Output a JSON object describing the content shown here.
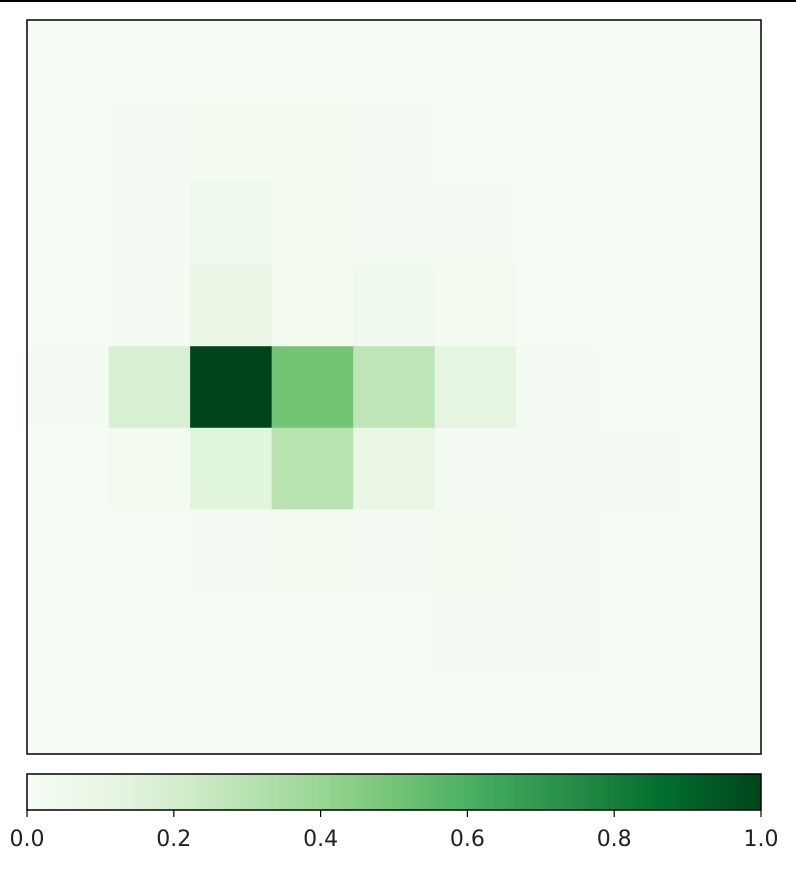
{
  "chart_data": {
    "type": "heatmap",
    "title": "",
    "xlabel": "",
    "ylabel": "",
    "rows": 9,
    "cols": 9,
    "values": [
      [
        0.01,
        0.01,
        0.01,
        0.01,
        0.01,
        0.01,
        0.01,
        0.01,
        0.01
      ],
      [
        0.01,
        0.02,
        0.03,
        0.03,
        0.02,
        0.01,
        0.01,
        0.01,
        0.01
      ],
      [
        0.01,
        0.02,
        0.05,
        0.03,
        0.02,
        0.02,
        0.01,
        0.01,
        0.01
      ],
      [
        0.01,
        0.02,
        0.1,
        0.03,
        0.05,
        0.03,
        0.01,
        0.01,
        0.01
      ],
      [
        0.02,
        0.18,
        1.0,
        0.5,
        0.28,
        0.12,
        0.02,
        0.01,
        0.01
      ],
      [
        0.01,
        0.03,
        0.14,
        0.3,
        0.1,
        0.02,
        0.02,
        0.02,
        0.01
      ],
      [
        0.01,
        0.01,
        0.02,
        0.03,
        0.02,
        0.03,
        0.02,
        0.01,
        0.01
      ],
      [
        0.01,
        0.01,
        0.01,
        0.01,
        0.01,
        0.02,
        0.02,
        0.01,
        0.01
      ],
      [
        0.01,
        0.01,
        0.01,
        0.01,
        0.01,
        0.01,
        0.01,
        0.01,
        0.01
      ]
    ],
    "colormap": "Greens",
    "color_stops": [
      "#f7fcf5",
      "#e5f5e0",
      "#c7e9c0",
      "#a1d99b",
      "#74c476",
      "#41ab5d",
      "#238b45",
      "#006d2c",
      "#00441b"
    ],
    "colorbar": {
      "orientation": "horizontal",
      "range": [
        0.0,
        1.0
      ],
      "ticks": [
        0.0,
        0.2,
        0.4,
        0.6,
        0.8,
        1.0
      ],
      "tick_labels": [
        "0.0",
        "0.2",
        "0.4",
        "0.6",
        "0.8",
        "1.0"
      ]
    },
    "axes_ticks_visible": false,
    "grid": false
  }
}
